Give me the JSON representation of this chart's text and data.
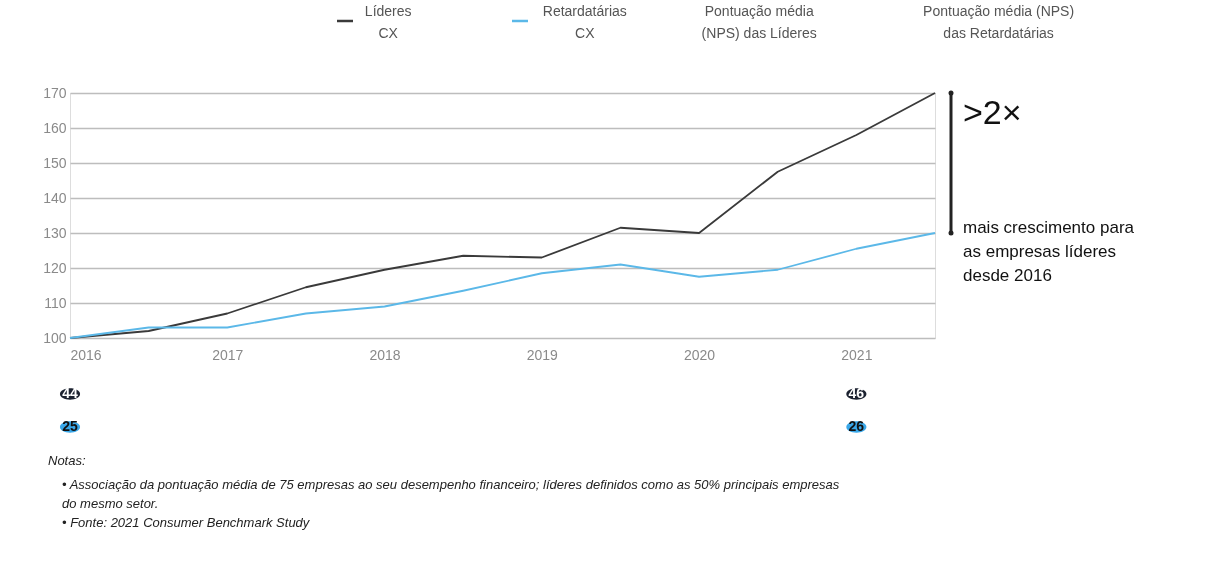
{
  "chart_data": {
    "type": "line",
    "x": [
      2016,
      2016.5,
      2017,
      2017.5,
      2018,
      2018.5,
      2019,
      2019.5,
      2020,
      2020.5,
      2021,
      2021.5
    ],
    "series": [
      {
        "name": "Líderes\nCX",
        "color": "#3a3a3a",
        "values": [
          100,
          102,
          107,
          114.5,
          119.5,
          123.5,
          123,
          131.5,
          130,
          147.5,
          158,
          170
        ]
      },
      {
        "name": "Retardatárias\nCX",
        "color": "#5bb8e8",
        "values": [
          100,
          103,
          103,
          107,
          109,
          113.5,
          118.5,
          121,
          117.5,
          119.5,
          125.5,
          130
        ]
      }
    ],
    "xlim": [
      2016,
      2021.5
    ],
    "xticks": [
      2016,
      2017,
      2018,
      2019,
      2020,
      2021
    ],
    "ylim": [
      100,
      170
    ],
    "yticks": [
      100,
      110,
      120,
      130,
      140,
      150,
      160,
      170
    ],
    "grid": "y",
    "legend": "top",
    "annotations": [
      {
        "text": ">2×",
        "x": 2021.5,
        "y": 170
      },
      {
        "text": "mais crescimento para\n as empresas líderes\ndesde 2016",
        "x": 2021.5,
        "y": 130
      },
      "Notas:",
      "•  Associação da pontuação média de 75 empresas ao seu desempenho financeiro; líderes definidos como as 50% principais empresas\n    do mesmo setor.",
      "•  Fonte: 2021 Consumer Benchmark Study",
      "Pontuação média\n(NPS) das Líderes",
      "Pontuação média (NPS)\ndas Retardatárias",
      "44",
      "25",
      "46",
      "26"
    ]
  }
}
